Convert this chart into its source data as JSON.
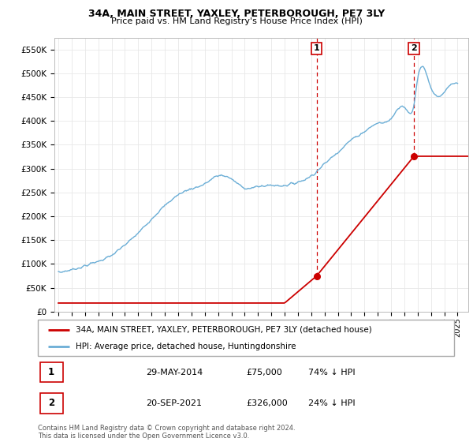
{
  "title": "34A, MAIN STREET, YAXLEY, PETERBOROUGH, PE7 3LY",
  "subtitle": "Price paid vs. HM Land Registry's House Price Index (HPI)",
  "background_color": "#ffffff",
  "grid_color": "#e8e8e8",
  "ylim": [
    0,
    575000
  ],
  "yticks": [
    0,
    50000,
    100000,
    150000,
    200000,
    250000,
    300000,
    350000,
    400000,
    450000,
    500000,
    550000
  ],
  "ytick_labels": [
    "£0",
    "£50K",
    "£100K",
    "£150K",
    "£200K",
    "£250K",
    "£300K",
    "£350K",
    "£400K",
    "£450K",
    "£500K",
    "£550K"
  ],
  "hpi_color": "#6baed6",
  "sale_color": "#cc0000",
  "dashed_color": "#cc0000",
  "marker1_x": 2014.41,
  "marker1_y": 75000,
  "marker2_x": 2021.72,
  "marker2_y": 326000,
  "xlim_left": 1994.7,
  "xlim_right": 2025.8,
  "xticks_start": 1995,
  "xticks_end": 2025,
  "legend_label_red": "34A, MAIN STREET, YAXLEY, PETERBOROUGH, PE7 3LY (detached house)",
  "legend_label_blue": "HPI: Average price, detached house, Huntingdonshire",
  "footnote": "Contains HM Land Registry data © Crown copyright and database right 2024.\nThis data is licensed under the Open Government Licence v3.0.",
  "table_rows": [
    {
      "num": "1",
      "date": "29-MAY-2014",
      "price": "£75,000",
      "pct": "74% ↓ HPI"
    },
    {
      "num": "2",
      "date": "20-SEP-2021",
      "price": "£326,000",
      "pct": "24% ↓ HPI"
    }
  ]
}
